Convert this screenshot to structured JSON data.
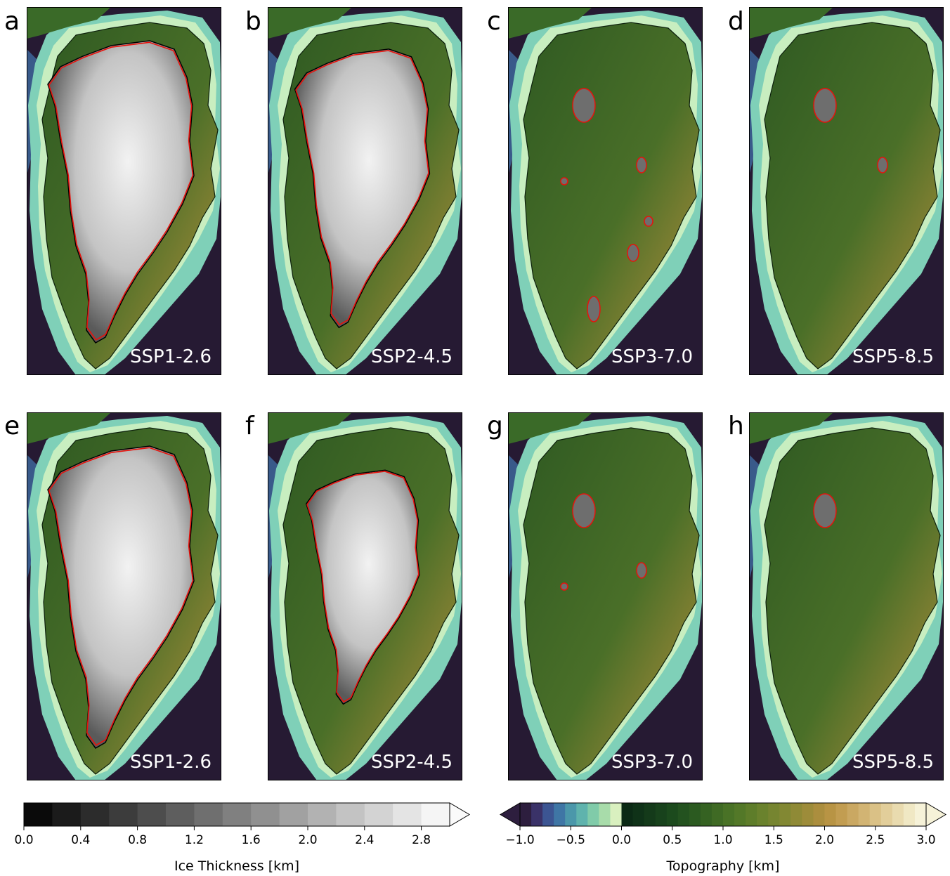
{
  "colors": {
    "ocean_deep": "#261a33",
    "ocean_shallow": "#3e6aa0",
    "shelf": "#7fd0b8",
    "coast": "#c8eec0",
    "land_low": "#1a4a1c",
    "land_mid": "#4f7a2a",
    "land_high": "#c9a85a",
    "ice_contour": "#e8120c",
    "ice_boundary": "#000000"
  },
  "chart_data": [
    {
      "type": "heatmap",
      "description_panels": [
        {
          "letter": "a",
          "scenario": "SSP1-2.6",
          "ice_fraction": 1.0
        },
        {
          "letter": "b",
          "scenario": "SSP2-4.5",
          "ice_fraction": 0.85
        },
        {
          "letter": "c",
          "scenario": "SSP3-7.0",
          "ice_fraction": 0.08
        },
        {
          "letter": "d",
          "scenario": "SSP5-8.5",
          "ice_fraction": 0.02
        },
        {
          "letter": "e",
          "scenario": "SSP1-2.6",
          "ice_fraction": 1.0
        },
        {
          "letter": "f",
          "scenario": "SSP2-4.5",
          "ice_fraction": 0.6
        },
        {
          "letter": "g",
          "scenario": "SSP3-7.0",
          "ice_fraction": 0.04
        },
        {
          "letter": "h",
          "scenario": "SSP5-8.5",
          "ice_fraction": 0.01
        }
      ]
    }
  ],
  "colorbars": {
    "ice": {
      "label": "Ice Thickness [km]",
      "min": 0.0,
      "max": 3.0,
      "ticks": [
        0.0,
        0.4,
        0.8,
        1.2,
        1.6,
        2.0,
        2.4,
        2.8
      ],
      "tick_labels": [
        "0.0",
        "0.4",
        "0.8",
        "1.2",
        "1.6",
        "2.0",
        "2.4",
        "2.8"
      ],
      "n_levels": 15,
      "extend": "max"
    },
    "topo": {
      "label": "Topography [km]",
      "min": -1.0,
      "max": 3.0,
      "ticks": [
        -1.0,
        -0.5,
        0.0,
        0.5,
        1.0,
        1.5,
        2.0,
        2.5,
        3.0
      ],
      "tick_labels": [
        "−1.0",
        "−0.5",
        "0.0",
        "0.5",
        "1.0",
        "1.5",
        "2.0",
        "2.5",
        "3.0"
      ],
      "negative_colors": [
        "#2d1e3e",
        "#3a3268",
        "#3c5592",
        "#3f76a5",
        "#4b97aa",
        "#5fb3ad",
        "#80cba9",
        "#a8dcaa",
        "#d9f0bf"
      ],
      "positive_colors": [
        "#0b2a15",
        "#0f3218",
        "#143a1a",
        "#18421c",
        "#1c4a1d",
        "#23521f",
        "#2b5a20",
        "#356222",
        "#3f6a24",
        "#497226",
        "#537828",
        "#5e7d2a",
        "#6a822d",
        "#768530",
        "#828833",
        "#8f8a36",
        "#9d8c3a",
        "#ab8e3e",
        "#b89444",
        "#c29d51",
        "#caa862",
        "#d2b473",
        "#dac186",
        "#e2ce9a",
        "#e9dbaf",
        "#f0e8c4",
        "#f6f2d8"
      ],
      "extend": "both"
    }
  }
}
